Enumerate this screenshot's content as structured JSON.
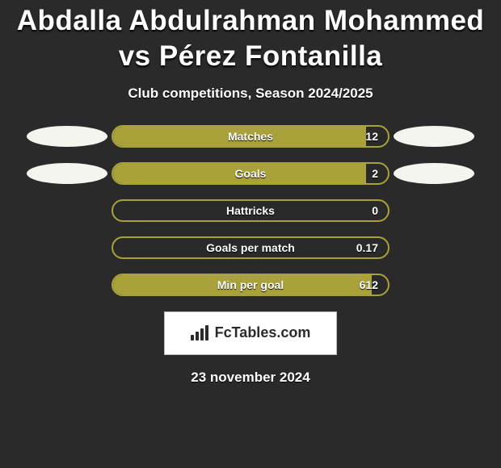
{
  "background_color": "#2a2a2a",
  "text_color": "#ffffff",
  "title": "Abdalla Abdulrahman Mohammed vs Pérez Fontanilla",
  "title_fontsize": 35,
  "subtitle": "Club competitions, Season 2024/2025",
  "subtitle_fontsize": 17,
  "bar_border_color": "#a9a13a",
  "bar_fill_color": "#a9a13a",
  "ellipse_color": "#f5f5f0",
  "rows": [
    {
      "label": "Matches",
      "value": "12",
      "fill_pct": 92,
      "show_left_ellipse": true,
      "show_right_ellipse": true
    },
    {
      "label": "Goals",
      "value": "2",
      "fill_pct": 92,
      "show_left_ellipse": true,
      "show_right_ellipse": true
    },
    {
      "label": "Hattricks",
      "value": "0",
      "fill_pct": 0,
      "show_left_ellipse": false,
      "show_right_ellipse": false
    },
    {
      "label": "Goals per match",
      "value": "0.17",
      "fill_pct": 0,
      "show_left_ellipse": false,
      "show_right_ellipse": false
    },
    {
      "label": "Min per goal",
      "value": "612",
      "fill_pct": 94,
      "show_left_ellipse": false,
      "show_right_ellipse": false
    }
  ],
  "logo_text": "FcTables.com",
  "logo_bar_heights": [
    7,
    11,
    15,
    19
  ],
  "date": "23 november 2024",
  "date_fontsize": 17
}
